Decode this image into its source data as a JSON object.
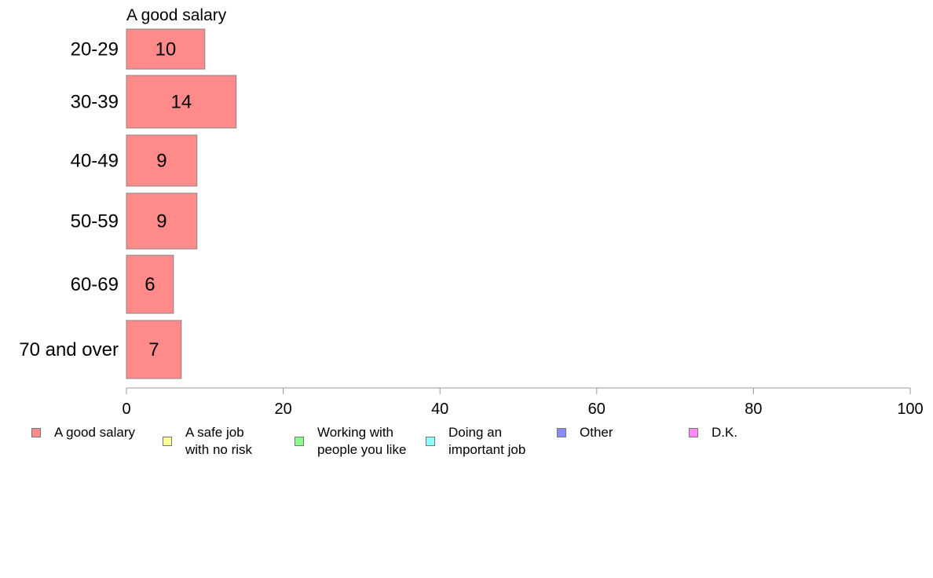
{
  "chart_data": {
    "type": "bar",
    "orientation": "horizontal",
    "title": "A good salary",
    "categories": [
      "20-29",
      "30-39",
      "40-49",
      "50-59",
      "60-69",
      "70 and over"
    ],
    "series": [
      {
        "name": "A good salary",
        "values": [
          10,
          14,
          9,
          9,
          6,
          7
        ],
        "color": "#ff8a8a"
      }
    ],
    "data_labels": [
      "10",
      "14",
      "9",
      "9",
      "6",
      "7"
    ],
    "xlim": [
      0,
      100
    ],
    "xticks": [
      0,
      20,
      40,
      60,
      80,
      100
    ],
    "xtick_labels": [
      "0",
      "20",
      "40",
      "60",
      "80",
      "100"
    ],
    "grid": false,
    "legend_position": "bottom"
  },
  "legend": {
    "items": [
      {
        "label": "A good salary",
        "color": "#ff8a8a"
      },
      {
        "label": "A safe job\nwith no risk",
        "color": "#ffff99"
      },
      {
        "label": "Working with\npeople you like",
        "color": "#8aff8a"
      },
      {
        "label": "Doing an\nimportant job",
        "color": "#8affff"
      },
      {
        "label": "Other",
        "color": "#8a8aff"
      },
      {
        "label": "D.K.",
        "color": "#ff8aff"
      }
    ]
  }
}
